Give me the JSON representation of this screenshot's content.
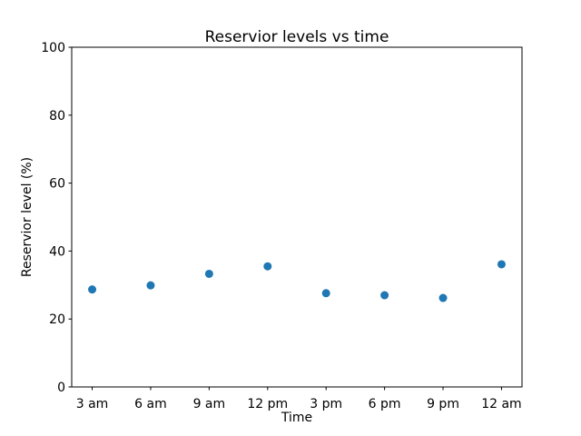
{
  "chart_data": {
    "type": "scatter",
    "title": "Reservior levels vs time",
    "xlabel": "Time",
    "ylabel": "Reservior level (%)",
    "categories": [
      "3 am",
      "6 am",
      "9 am",
      "12 pm",
      "3 pm",
      "6 pm",
      "9 pm",
      "12 am"
    ],
    "values": [
      28.7,
      29.9,
      33.3,
      35.5,
      27.6,
      27.0,
      26.2,
      36.1
    ],
    "ylim": [
      0,
      100
    ],
    "yticks": [
      0,
      20,
      40,
      60,
      80,
      100
    ],
    "marker_color": "#1f77b4",
    "axis_color": "#000000",
    "grid": false,
    "legend": "none"
  }
}
